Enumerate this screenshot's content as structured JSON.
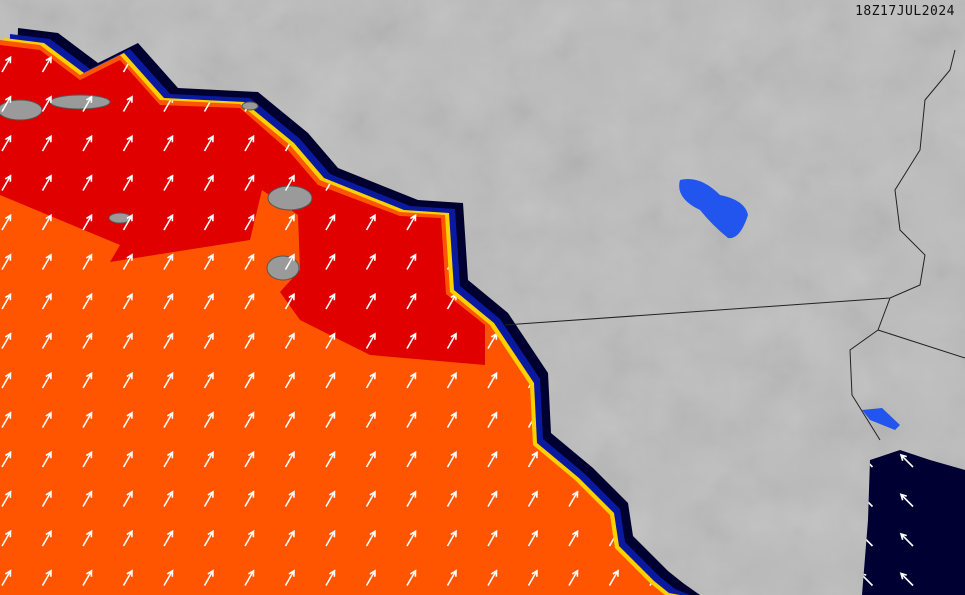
{
  "map": {
    "timestamp": "18Z17JUL2024",
    "colors": {
      "land": "#bcbcbc",
      "ocean_high": "#ff5500",
      "ocean_very_high": "#e00000",
      "coast_band_yellow": "#ffd000",
      "coast_band_blue": "#0a1aa0",
      "coast_band_navy": "#000030",
      "lake": "#2255ee",
      "gulf": "#000033",
      "arrow": "#ffffff",
      "border": "#222222"
    },
    "arrow_direction_pacific": "north-northeast",
    "arrow_direction_gulf": "northwest"
  }
}
